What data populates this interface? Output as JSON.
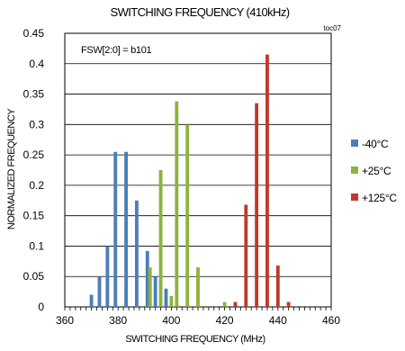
{
  "chart_data": {
    "type": "bar",
    "title": "SWITCHING FREQUENCY (410kHz)",
    "corner_note": "toc07",
    "annotation": "FSW[2:0] = b101",
    "xlabel": "SWITCHING FREQUENCY (MHz)",
    "ylabel": "NORMALIZED FREQUENCY",
    "xlim": [
      360,
      460
    ],
    "ylim": [
      0,
      0.45
    ],
    "x_ticks": [
      "360",
      "380",
      "400",
      "420",
      "440",
      "460"
    ],
    "y_ticks": [
      "0",
      "0.05",
      "0.1",
      "0.15",
      "0.2",
      "0.25",
      "0.3",
      "0.35",
      "0.4",
      "0.45"
    ],
    "grid": "horizontal",
    "legend_position": "right",
    "series": [
      {
        "name": "-40°C",
        "color": "#4a7ebb",
        "points": [
          {
            "x": 370,
            "y": 0.02
          },
          {
            "x": 373,
            "y": 0.05
          },
          {
            "x": 376,
            "y": 0.1
          },
          {
            "x": 379,
            "y": 0.255
          },
          {
            "x": 383,
            "y": 0.255
          },
          {
            "x": 387,
            "y": 0.175
          },
          {
            "x": 391,
            "y": 0.092
          },
          {
            "x": 394,
            "y": 0.05
          },
          {
            "x": 398,
            "y": 0.03
          }
        ]
      },
      {
        "name": "+25°C",
        "color": "#8db33c",
        "points": [
          {
            "x": 392,
            "y": 0.065
          },
          {
            "x": 396,
            "y": 0.225
          },
          {
            "x": 400,
            "y": 0.018
          },
          {
            "x": 402,
            "y": 0.338
          },
          {
            "x": 406,
            "y": 0.3
          },
          {
            "x": 410,
            "y": 0.065
          },
          {
            "x": 420,
            "y": 0.008
          }
        ]
      },
      {
        "name": "+125°C",
        "color": "#c0392b",
        "points": [
          {
            "x": 424,
            "y": 0.008
          },
          {
            "x": 428,
            "y": 0.168
          },
          {
            "x": 432,
            "y": 0.335
          },
          {
            "x": 436,
            "y": 0.415
          },
          {
            "x": 440,
            "y": 0.068
          },
          {
            "x": 444,
            "y": 0.008
          }
        ]
      }
    ]
  }
}
